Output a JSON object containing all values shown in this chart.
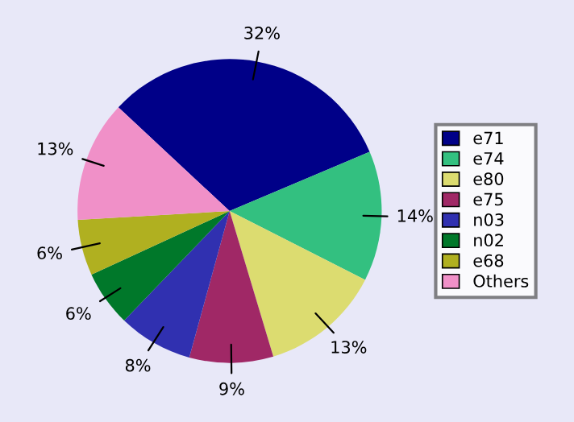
{
  "chart_data": {
    "type": "pie",
    "categories": [
      "e71",
      "e74",
      "e80",
      "e75",
      "n03",
      "n02",
      "e68",
      "Others"
    ],
    "values": [
      32,
      14,
      13,
      9,
      8,
      6,
      6,
      13
    ],
    "value_labels": [
      "32%",
      "14%",
      "13%",
      "9%",
      "8%",
      "6%",
      "6%",
      "13%"
    ],
    "colors": [
      "#000088",
      "#33c080",
      "#dcdc70",
      "#a02866",
      "#3030b0",
      "#00782a",
      "#b0b020",
      "#f090c8"
    ],
    "legend": "right"
  }
}
